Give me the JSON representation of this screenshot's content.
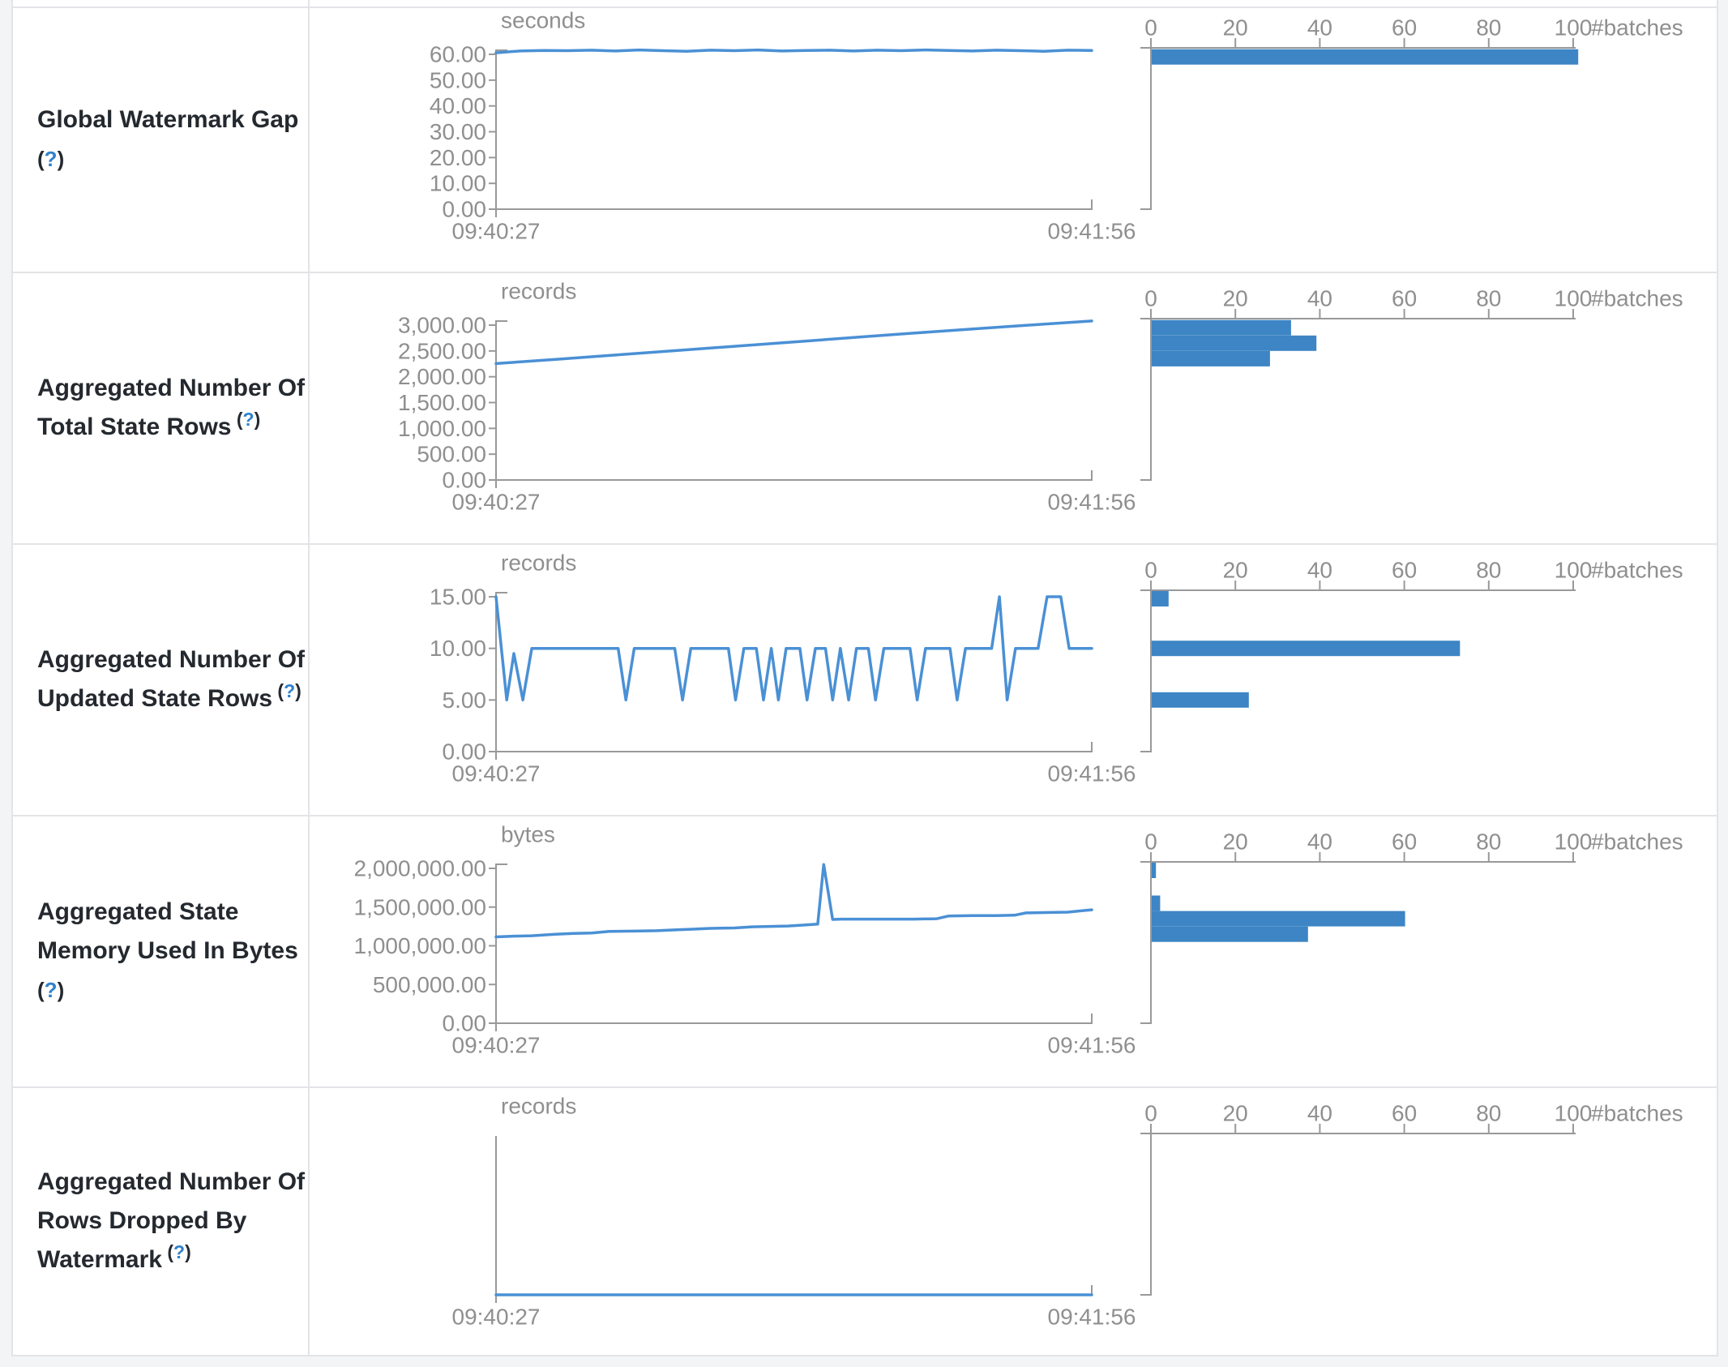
{
  "page": {
    "background": "#f3f4f6",
    "table_background": "#ffffff",
    "border_color": "#e2e4e7"
  },
  "colors": {
    "timeline_line": "#4a90d5",
    "histogram_bar": "#3d85c4",
    "axis": "#999999",
    "tick_text": "#8f8f8f",
    "label_text": "#24292f",
    "help_link": "#2f81cc"
  },
  "histogram_axis": {
    "ticks": [
      "0",
      "20",
      "40",
      "60",
      "80",
      "100"
    ],
    "tick_values": [
      0,
      20,
      40,
      60,
      80,
      100
    ],
    "label": "#batches"
  },
  "time_axis": {
    "start": "09:40:27",
    "end": "09:41:56"
  },
  "chart_data": [
    {
      "metric": "Global Watermark Gap",
      "label_lines": [
        "Global Watermark Gap"
      ],
      "help": "(?)",
      "help_inline": false,
      "type": "line",
      "unit": "seconds",
      "xlabel_start": "09:40:27",
      "xlabel_end": "09:41:56",
      "top_tick": 60,
      "y_ticks": [
        {
          "v": 60,
          "label": "60.00"
        },
        {
          "v": 50,
          "label": "50.00"
        },
        {
          "v": 40,
          "label": "40.00"
        },
        {
          "v": 30,
          "label": "30.00"
        },
        {
          "v": 20,
          "label": "20.00"
        },
        {
          "v": 10,
          "label": "10.00"
        },
        {
          "v": 0,
          "label": "0.00"
        }
      ],
      "timeline": {
        "x": [
          0,
          0.04,
          0.08,
          0.12,
          0.16,
          0.2,
          0.24,
          0.28,
          0.32,
          0.36,
          0.4,
          0.44,
          0.48,
          0.52,
          0.56,
          0.6,
          0.64,
          0.68,
          0.72,
          0.76,
          0.8,
          0.84,
          0.88,
          0.92,
          0.96,
          1
        ],
        "y": [
          60.6,
          61.3,
          61.5,
          61.4,
          61.6,
          61.3,
          61.7,
          61.4,
          61.2,
          61.6,
          61.4,
          61.7,
          61.3,
          61.5,
          61.6,
          61.3,
          61.6,
          61.4,
          61.7,
          61.5,
          61.3,
          61.6,
          61.4,
          61.2,
          61.6,
          61.5
        ]
      },
      "histogram_type": "bar",
      "histogram": {
        "buckets": [
          {
            "value": 59,
            "count": 101
          }
        ]
      }
    },
    {
      "metric": "Aggregated Number Of Total State Rows",
      "label_lines": [
        "Aggregated Number Of",
        "Total State Rows"
      ],
      "help": "(?)",
      "help_inline": true,
      "type": "line",
      "unit": "records",
      "xlabel_start": "09:40:27",
      "xlabel_end": "09:41:56",
      "top_tick": 3000,
      "y_ticks": [
        {
          "v": 3000,
          "label": "3,000.00"
        },
        {
          "v": 2500,
          "label": "2,500.00"
        },
        {
          "v": 2000,
          "label": "2,000.00"
        },
        {
          "v": 1500,
          "label": "1,500.00"
        },
        {
          "v": 1000,
          "label": "1,000.00"
        },
        {
          "v": 500,
          "label": "500.00"
        },
        {
          "v": 0,
          "label": "0.00"
        }
      ],
      "timeline": {
        "x": [
          0,
          0.1,
          0.2,
          0.3,
          0.4,
          0.5,
          0.6,
          0.7,
          0.8,
          0.9,
          1
        ],
        "y": [
          2255,
          2335,
          2420,
          2505,
          2590,
          2675,
          2760,
          2845,
          2925,
          3005,
          3080
        ]
      },
      "histogram_type": "bar",
      "histogram": {
        "buckets": [
          {
            "value": 2950,
            "count": 33
          },
          {
            "value": 2650,
            "count": 39
          },
          {
            "value": 2350,
            "count": 28
          }
        ]
      }
    },
    {
      "metric": "Aggregated Number Of Updated State Rows",
      "label_lines": [
        "Aggregated Number Of",
        "Updated State Rows"
      ],
      "help": "(?)",
      "help_inline": true,
      "type": "line",
      "unit": "records",
      "xlabel_start": "09:40:27",
      "xlabel_end": "09:41:56",
      "top_tick": 15,
      "y_ticks": [
        {
          "v": 15,
          "label": "15.00"
        },
        {
          "v": 10,
          "label": "10.00"
        },
        {
          "v": 5,
          "label": "5.00"
        },
        {
          "v": 0,
          "label": "0.00"
        }
      ],
      "timeline": {
        "x": [
          0,
          0.018,
          0.03,
          0.045,
          0.06,
          0.205,
          0.218,
          0.232,
          0.3,
          0.313,
          0.327,
          0.39,
          0.402,
          0.416,
          0.437,
          0.449,
          0.462,
          0.474,
          0.487,
          0.51,
          0.522,
          0.536,
          0.553,
          0.565,
          0.578,
          0.592,
          0.605,
          0.625,
          0.637,
          0.651,
          0.695,
          0.707,
          0.721,
          0.762,
          0.774,
          0.788,
          0.832,
          0.845,
          0.858,
          0.872,
          0.91,
          0.925,
          0.948,
          0.962,
          1
        ],
        "y": [
          15,
          5,
          9.5,
          5,
          10,
          10,
          5,
          10,
          10,
          5,
          10,
          10,
          5,
          10,
          10,
          5,
          10,
          5,
          10,
          10,
          5,
          10,
          10,
          5,
          10,
          5,
          10,
          10,
          5,
          10,
          10,
          5,
          10,
          10,
          5,
          10,
          10,
          15,
          5,
          10,
          10,
          15,
          15,
          10,
          10
        ]
      },
      "histogram_type": "bar",
      "histogram": {
        "buckets": [
          {
            "value": 15,
            "count": 4
          },
          {
            "value": 10,
            "count": 73
          },
          {
            "value": 5,
            "count": 23
          }
        ]
      }
    },
    {
      "metric": "Aggregated State Memory Used In Bytes",
      "label_lines": [
        "Aggregated State",
        "Memory Used In Bytes"
      ],
      "help": "(?)",
      "help_inline": false,
      "type": "line",
      "unit": "bytes",
      "xlabel_start": "09:40:27",
      "xlabel_end": "09:41:56",
      "top_tick": 2000000,
      "y_ticks": [
        {
          "v": 2000000,
          "label": "2,000,000.00"
        },
        {
          "v": 1500000,
          "label": "1,500,000.00"
        },
        {
          "v": 1000000,
          "label": "1,000,000.00"
        },
        {
          "v": 500000,
          "label": "500,000.00"
        },
        {
          "v": 0,
          "label": "0.00"
        }
      ],
      "timeline": {
        "x": [
          0,
          0.03,
          0.06,
          0.1,
          0.13,
          0.16,
          0.19,
          0.23,
          0.27,
          0.3,
          0.33,
          0.36,
          0.4,
          0.43,
          0.46,
          0.49,
          0.52,
          0.54,
          0.55,
          0.565,
          0.58,
          0.62,
          0.66,
          0.7,
          0.74,
          0.76,
          0.8,
          0.84,
          0.87,
          0.89,
          0.93,
          0.96,
          0.98,
          1
        ],
        "y": [
          1115000,
          1125000,
          1130000,
          1150000,
          1160000,
          1165000,
          1185000,
          1190000,
          1195000,
          1205000,
          1215000,
          1225000,
          1230000,
          1245000,
          1250000,
          1255000,
          1270000,
          1280000,
          2050000,
          1340000,
          1345000,
          1345000,
          1345000,
          1345000,
          1350000,
          1385000,
          1390000,
          1390000,
          1395000,
          1425000,
          1430000,
          1435000,
          1450000,
          1465000
        ]
      },
      "histogram_type": "bar",
      "histogram": {
        "buckets": [
          {
            "value": 2000000,
            "count": 1
          },
          {
            "value": 1550000,
            "count": 2
          },
          {
            "value": 1350000,
            "count": 60
          },
          {
            "value": 1150000,
            "count": 37
          }
        ]
      }
    },
    {
      "metric": "Aggregated Number Of Rows Dropped By Watermark",
      "label_lines": [
        "Aggregated Number Of",
        "Rows Dropped By",
        "Watermark"
      ],
      "help": "(?)",
      "help_inline": true,
      "type": "line",
      "unit": "records",
      "xlabel_start": "09:40:27",
      "xlabel_end": "09:41:56",
      "top_tick": null,
      "y_ticks": [],
      "timeline": {
        "x": [
          0,
          1
        ],
        "y": [
          0,
          0
        ]
      },
      "histogram_type": "bar",
      "histogram": {
        "buckets": []
      }
    }
  ]
}
